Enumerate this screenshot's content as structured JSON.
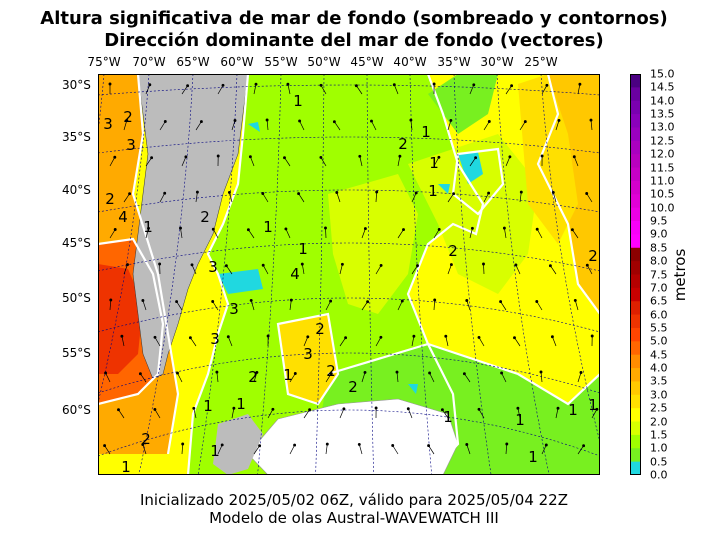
{
  "title": {
    "line1": "Altura significativa de mar de fondo (sombreado y contornos)",
    "line2": "Dirección dominante del mar de fondo (vectores)"
  },
  "footer": {
    "line1": "Inicializado 2025/05/02 06Z, válido para 2025/05/04 22Z",
    "line2": "Modelo de olas Austral-WAVEWATCH III"
  },
  "map": {
    "longitude_labels": [
      "75°W",
      "70°W",
      "65°W",
      "60°W",
      "55°W",
      "50°W",
      "45°W",
      "40°W",
      "35°W",
      "30°W",
      "25°W"
    ],
    "latitude_labels": [
      "30°S",
      "35°S",
      "40°S",
      "45°S",
      "50°S",
      "55°S",
      "60°S"
    ],
    "contour_labels": [
      "1",
      "1",
      "2",
      "1",
      "1",
      "2",
      "3",
      "2",
      "3",
      "4",
      "2",
      "1",
      "2",
      "1",
      "1",
      "3",
      "4",
      "3",
      "3",
      "2",
      "1",
      "2",
      "3",
      "2",
      "1",
      "1",
      "2",
      "1",
      "1",
      "2",
      "1",
      "1",
      "1",
      "1",
      "1",
      "2"
    ],
    "land_color": "#bcbcbc",
    "ice_color": "#ffffff"
  },
  "colorbar": {
    "label": "metros",
    "ticks": [
      "15.0",
      "14.5",
      "14.0",
      "13.5",
      "13.0",
      "12.5",
      "12.0",
      "11.5",
      "11.0",
      "10.5",
      "10.0",
      "9.5",
      "9.0",
      "8.5",
      "8.0",
      "7.5",
      "7.0",
      "6.5",
      "6.0",
      "5.5",
      "5.0",
      "4.5",
      "4.0",
      "3.5",
      "3.0",
      "2.5",
      "2.0",
      "1.5",
      "1.0",
      "0.5",
      "0.0"
    ],
    "colors": [
      "#4b0082",
      "#5a0090",
      "#6a00a0",
      "#7a00b0",
      "#8a00bb",
      "#9a00bf",
      "#aa00bf",
      "#b800bf",
      "#c600c6",
      "#d400cc",
      "#e000d6",
      "#ec00e4",
      "#f800f8",
      "#ff00ff",
      "#8b0000",
      "#a00000",
      "#b50000",
      "#c80000",
      "#dd2000",
      "#ee3300",
      "#ff4500",
      "#ff6600",
      "#ff8c00",
      "#ffaa00",
      "#ffc800",
      "#ffe000",
      "#ffff00",
      "#d8ff00",
      "#a0ff00",
      "#78f020",
      "#20d8e0"
    ]
  }
}
